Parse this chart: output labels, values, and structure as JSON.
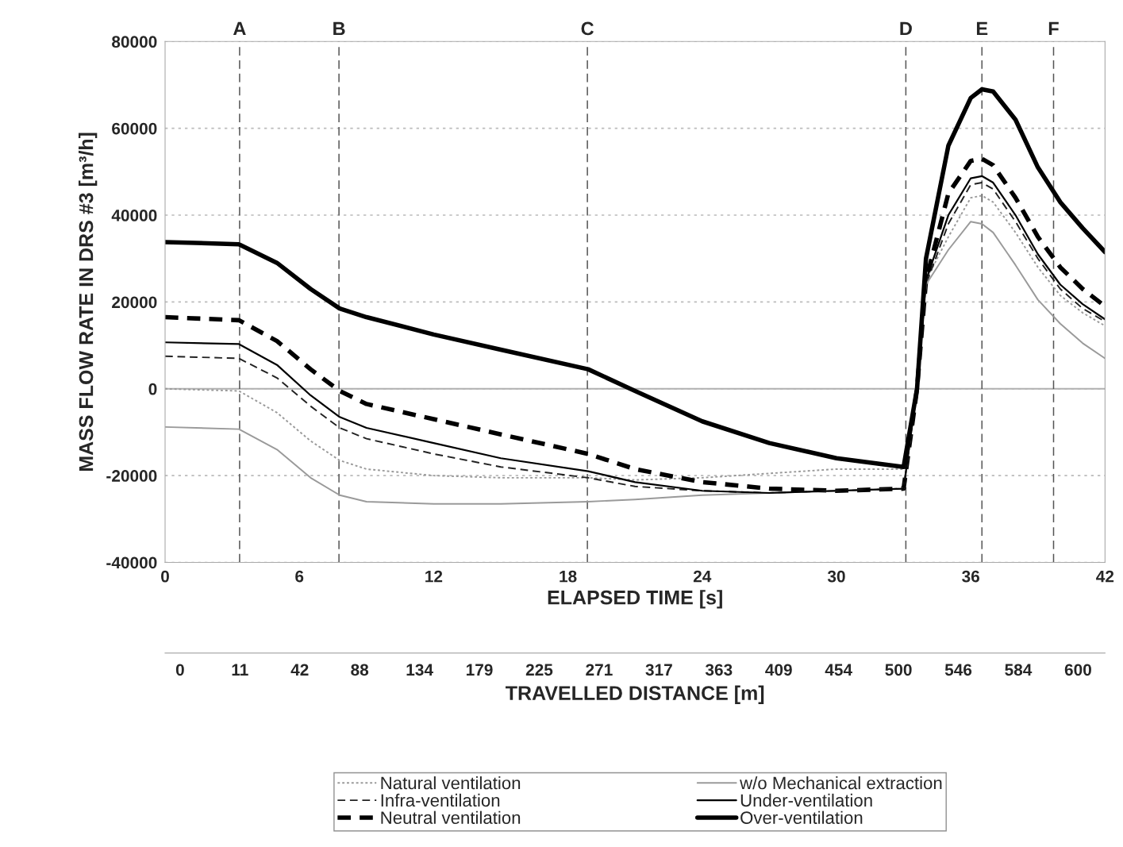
{
  "chart_data": [
    {
      "type": "line",
      "xlabel": "ELAPSED TIME [s]",
      "ylabel": "MASS FLOW RATE IN DRS #3 [m³/h]",
      "x": [
        0,
        3.3,
        5,
        6.5,
        7.8,
        9,
        12,
        15,
        18.9,
        21,
        24,
        27,
        30,
        33,
        33.6,
        34,
        35,
        36,
        36.5,
        37,
        38,
        39,
        40,
        41,
        42
      ],
      "series": [
        {
          "name": "Natural ventilation",
          "color": "#9a9a9a",
          "line_style": "dotted",
          "values": [
            0,
            -500,
            -5500,
            -12000,
            -16500,
            -18500,
            -20000,
            -20500,
            -20500,
            -21000,
            -20500,
            -19500,
            -18500,
            -18500,
            0,
            25000,
            35000,
            44000,
            44500,
            43000,
            36000,
            28000,
            21500,
            17500,
            14500
          ]
        },
        {
          "name": "Infra-ventilation",
          "color": "#222222",
          "line_style": "dashed",
          "values": [
            7500,
            7000,
            2500,
            -4000,
            -9000,
            -11500,
            -15000,
            -18000,
            -20500,
            -22500,
            -23500,
            -24000,
            -23500,
            -23000,
            0,
            24000,
            38000,
            47000,
            47500,
            46000,
            38500,
            30000,
            23000,
            18500,
            15500
          ]
        },
        {
          "name": "Neutral ventilation",
          "color": "#000000",
          "line_style": "dashed",
          "values": [
            16500,
            15800,
            11000,
            4500,
            -500,
            -3500,
            -7000,
            -10500,
            -15000,
            -18500,
            -21500,
            -23000,
            -23500,
            -23000,
            0,
            25000,
            45000,
            52500,
            53000,
            51500,
            44000,
            35000,
            28000,
            23000,
            19000
          ]
        },
        {
          "name": "w/o Mechanical extraction",
          "color": "#9a9a9a",
          "line_style": "solid",
          "values": [
            -8800,
            -9300,
            -14000,
            -20500,
            -24500,
            -26000,
            -26500,
            -26500,
            -26000,
            -25500,
            -24500,
            -24000,
            -23500,
            -23000,
            0,
            24000,
            32000,
            38500,
            38000,
            36000,
            28500,
            20500,
            15000,
            10500,
            7000
          ]
        },
        {
          "name": "Under-ventilation",
          "color": "#000000",
          "line_style": "solid",
          "values": [
            10700,
            10300,
            5500,
            -1500,
            -6500,
            -9000,
            -12500,
            -16000,
            -19000,
            -21500,
            -23500,
            -24000,
            -23500,
            -23000,
            0,
            25000,
            40000,
            48500,
            49000,
            47500,
            40000,
            31000,
            24000,
            19500,
            16000
          ]
        },
        {
          "name": "Over-ventilation",
          "color": "#000000",
          "line_style": "solid",
          "values": [
            33800,
            33300,
            29000,
            23000,
            18500,
            16500,
            12500,
            9000,
            4500,
            -500,
            -7500,
            -12500,
            -16000,
            -18000,
            0,
            30000,
            56000,
            67000,
            69000,
            68500,
            62000,
            51000,
            43000,
            37000,
            31500
          ]
        }
      ],
      "xlim": [
        0,
        42
      ],
      "xticks": [
        0,
        6,
        12,
        18,
        24,
        30,
        36,
        42
      ],
      "ylim": [
        -40000,
        80000
      ],
      "yticks": [
        -40000,
        -20000,
        0,
        20000,
        40000,
        60000,
        80000
      ],
      "ref_lines": [
        {
          "axis": "y",
          "value": 0,
          "color": "#b0b0b0",
          "line_style": "solid"
        },
        {
          "axis": "x",
          "value": 3.33,
          "label": "A",
          "color": "#555555",
          "line_style": "dashed"
        },
        {
          "axis": "x",
          "value": 7.77,
          "label": "B",
          "color": "#555555",
          "line_style": "dashed"
        },
        {
          "axis": "x",
          "value": 18.87,
          "label": "C",
          "color": "#555555",
          "line_style": "dashed"
        },
        {
          "axis": "x",
          "value": 33.1,
          "label": "D",
          "color": "#555555",
          "line_style": "dashed"
        },
        {
          "axis": "x",
          "value": 36.5,
          "label": "E",
          "color": "#555555",
          "line_style": "dashed"
        },
        {
          "axis": "x",
          "value": 39.7,
          "label": "F",
          "color": "#555555",
          "line_style": "dashed"
        }
      ],
      "grid": "y",
      "legend": "bottom",
      "marker": "none"
    },
    {
      "type": "other",
      "xlabel": "TRAVELLED DISTANCE [m]",
      "categories": [
        "0",
        "11",
        "42",
        "88",
        "134",
        "179",
        "225",
        "271",
        "317",
        "363",
        "409",
        "454",
        "500",
        "546",
        "584",
        "600"
      ]
    }
  ]
}
